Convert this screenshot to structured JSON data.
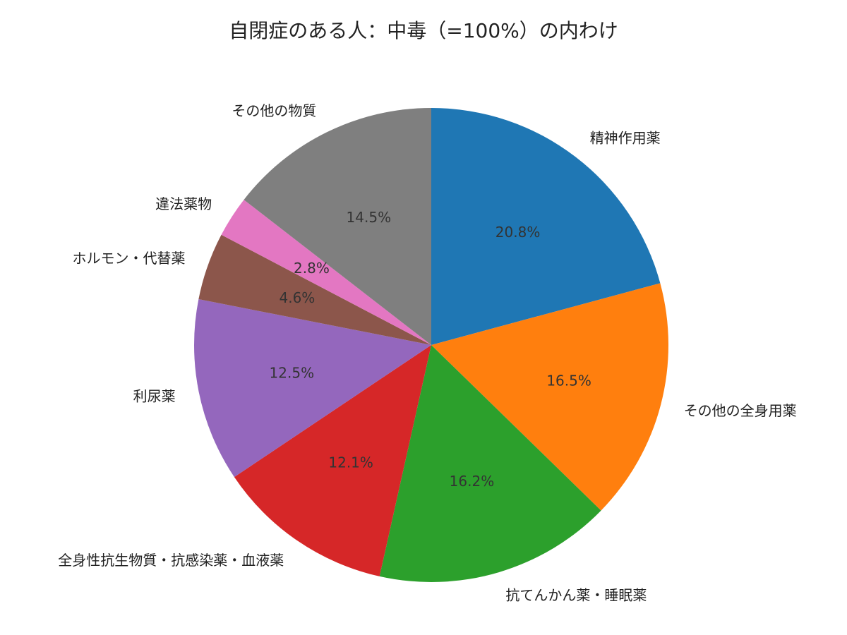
{
  "chart_data": {
    "type": "pie",
    "title": "自閉症のある人：中毒（=100%）の内わけ",
    "start_angle_deg": 90,
    "direction": "clockwise",
    "slices": [
      {
        "label": "精神作用薬",
        "value": 20.8,
        "pct_label": "20.8%",
        "color": "#1f77b4"
      },
      {
        "label": "その他の全身用薬",
        "value": 16.5,
        "pct_label": "16.5%",
        "color": "#ff7f0e"
      },
      {
        "label": "抗てんかん薬・睡眠薬",
        "value": 16.2,
        "pct_label": "16.2%",
        "color": "#2ca02c"
      },
      {
        "label": "全身性抗生物質・抗感染薬・血液薬",
        "value": 12.1,
        "pct_label": "12.1%",
        "color": "#d62728"
      },
      {
        "label": "利尿薬",
        "value": 12.5,
        "pct_label": "12.5%",
        "color": "#9467bd"
      },
      {
        "label": "ホルモン・代替薬",
        "value": 4.6,
        "pct_label": "4.6%",
        "color": "#8c564b"
      },
      {
        "label": "違法薬物",
        "value": 2.8,
        "pct_label": "2.8%",
        "color": "#e377c2"
      },
      {
        "label": "その他の物質",
        "value": 14.5,
        "pct_label": "14.5%",
        "color": "#7f7f7f"
      }
    ]
  }
}
